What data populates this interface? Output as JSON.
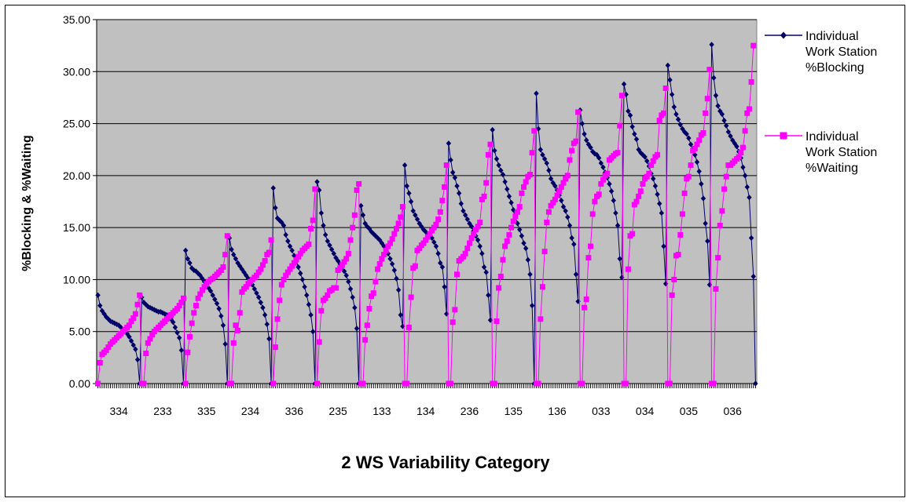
{
  "chart_data": {
    "type": "line",
    "title": "",
    "xlabel": "2 WS Variability Category",
    "ylabel": "%Blocking & %Waiting",
    "ylim": [
      0,
      35
    ],
    "yticks": [
      "0.00",
      "5.00",
      "10.00",
      "15.00",
      "20.00",
      "25.00",
      "30.00",
      "35.00"
    ],
    "grid": true,
    "legend_position": "right",
    "categories": [
      "334",
      "233",
      "335",
      "234",
      "336",
      "235",
      "133",
      "134",
      "236",
      "135",
      "136",
      "033",
      "034",
      "035",
      "036"
    ],
    "points_per_category": 21,
    "series": [
      {
        "name": "Individual Work Station %Blocking",
        "color": "#000066",
        "marker": "diamond",
        "groups": [
          [
            8.5,
            7.5,
            7.0,
            6.7,
            6.4,
            6.2,
            6.0,
            5.9,
            5.8,
            5.7,
            5.6,
            5.4,
            5.2,
            5.0,
            4.8,
            4.5,
            4.1,
            3.7,
            3.3,
            2.3,
            0
          ],
          [
            8.3,
            7.8,
            7.6,
            7.4,
            7.3,
            7.2,
            7.1,
            7.0,
            6.9,
            6.9,
            6.8,
            6.7,
            6.6,
            6.4,
            6.2,
            5.9,
            5.4,
            4.9,
            4.4,
            3.2,
            0
          ],
          [
            12.8,
            12.0,
            11.6,
            11.1,
            10.9,
            10.8,
            10.6,
            10.4,
            10.1,
            9.8,
            9.5,
            9.2,
            8.9,
            8.5,
            8.1,
            7.7,
            7.2,
            6.5,
            5.6,
            3.8,
            0
          ],
          [
            14.0,
            12.9,
            12.4,
            12.0,
            11.6,
            11.3,
            11.0,
            10.7,
            10.4,
            10.1,
            9.8,
            9.5,
            9.1,
            8.7,
            8.3,
            7.8,
            7.3,
            6.6,
            5.7,
            4.3,
            0
          ],
          [
            18.8,
            16.9,
            15.9,
            15.7,
            15.5,
            15.2,
            14.3,
            13.7,
            13.2,
            12.8,
            12.3,
            11.8,
            11.2,
            10.6,
            10.0,
            9.3,
            8.5,
            7.6,
            6.6,
            5.0,
            0
          ],
          [
            19.4,
            18.6,
            16.4,
            15.2,
            14.3,
            13.7,
            13.3,
            12.9,
            12.5,
            12.1,
            11.8,
            11.5,
            11.2,
            10.8,
            10.4,
            9.8,
            9.1,
            8.3,
            7.3,
            5.3,
            0
          ],
          [
            17.1,
            16.2,
            15.4,
            15.1,
            14.9,
            14.6,
            14.4,
            14.2,
            14.0,
            13.8,
            13.5,
            13.2,
            12.9,
            12.5,
            12.0,
            11.5,
            10.9,
            10.1,
            9.0,
            6.6,
            5.5
          ],
          [
            21.0,
            19.0,
            18.3,
            17.5,
            16.6,
            16.2,
            15.8,
            15.4,
            15.1,
            14.8,
            14.6,
            14.4,
            14.2,
            14.0,
            13.6,
            13.2,
            12.5,
            11.6,
            11.2,
            9.3,
            6.7
          ],
          [
            23.1,
            21.5,
            20.3,
            19.8,
            19.0,
            18.3,
            17.3,
            16.6,
            16.2,
            15.8,
            15.4,
            15.1,
            14.7,
            14.2,
            13.8,
            13.2,
            12.5,
            11.2,
            10.7,
            8.5,
            6.1
          ],
          [
            24.4,
            22.4,
            21.6,
            21.0,
            20.5,
            20.1,
            19.4,
            18.7,
            18.0,
            17.4,
            16.7,
            16.0,
            15.4,
            14.8,
            14.2,
            13.5,
            13.0,
            11.9,
            10.5,
            7.5,
            0
          ],
          [
            27.9,
            24.5,
            22.5,
            22.0,
            21.6,
            21.2,
            20.5,
            19.7,
            19.3,
            19.0,
            18.6,
            18.1,
            17.6,
            17.0,
            16.6,
            16.0,
            15.2,
            14.0,
            13.4,
            10.5,
            7.9
          ],
          [
            26.3,
            25.0,
            24.0,
            23.4,
            23.0,
            22.7,
            22.3,
            22.1,
            22.0,
            21.7,
            21.2,
            20.8,
            20.3,
            19.8,
            19.2,
            18.5,
            17.6,
            16.4,
            15.2,
            12.0,
            10.2
          ],
          [
            28.8,
            27.8,
            26.2,
            25.8,
            24.7,
            24.0,
            23.5,
            22.5,
            22.2,
            22.0,
            21.8,
            21.4,
            20.9,
            20.2,
            19.7,
            19.0,
            18.2,
            17.3,
            16.4,
            13.2,
            9.6
          ],
          [
            30.6,
            29.2,
            27.8,
            26.6,
            25.9,
            25.4,
            24.9,
            24.5,
            24.2,
            24.0,
            23.6,
            23.0,
            22.5,
            22.0,
            21.3,
            20.4,
            19.2,
            17.8,
            15.4,
            13.7,
            9.5
          ],
          [
            32.6,
            29.4,
            27.7,
            26.7,
            26.2,
            25.9,
            25.3,
            24.8,
            24.2,
            23.8,
            23.4,
            23.1,
            22.8,
            22.3,
            21.7,
            20.8,
            20.0,
            18.9,
            17.9,
            14.0,
            10.3
          ]
        ],
        "trailing_value": 0
      },
      {
        "name": "Individual Work Station %Waiting",
        "color": "#FF00FF",
        "marker": "square",
        "groups": [
          [
            0,
            2.0,
            2.8,
            3.0,
            3.2,
            3.5,
            3.8,
            4.0,
            4.2,
            4.4,
            4.6,
            4.8,
            5.0,
            5.2,
            5.4,
            5.6,
            6.0,
            6.3,
            6.7,
            7.6,
            8.5
          ],
          [
            0,
            0,
            2.9,
            3.9,
            4.3,
            4.7,
            5.0,
            5.2,
            5.4,
            5.6,
            5.8,
            6.0,
            6.2,
            6.4,
            6.6,
            6.8,
            7.0,
            7.2,
            7.5,
            7.8,
            8.2
          ],
          [
            0,
            3.0,
            4.5,
            5.8,
            6.8,
            7.5,
            8.2,
            8.6,
            9.0,
            9.3,
            9.6,
            9.8,
            10.0,
            10.1,
            10.3,
            10.5,
            10.7,
            10.9,
            11.2,
            12.4,
            14.2
          ],
          [
            0,
            0,
            3.9,
            5.6,
            5.1,
            6.8,
            8.8,
            9.1,
            9.3,
            9.6,
            9.8,
            10.0,
            10.2,
            10.4,
            10.7,
            11.0,
            11.4,
            11.8,
            12.4,
            12.6,
            13.8
          ],
          [
            0,
            3.5,
            6.2,
            8.0,
            9.5,
            10.0,
            10.4,
            10.7,
            11.0,
            11.3,
            11.6,
            11.9,
            12.2,
            12.5,
            12.8,
            13.0,
            13.2,
            13.4,
            14.9,
            15.7,
            18.7
          ],
          [
            0,
            4.0,
            7.0,
            8.0,
            8.2,
            8.5,
            8.9,
            9.0,
            9.2,
            9.2,
            10.9,
            11.1,
            11.4,
            11.7,
            12.0,
            12.5,
            13.8,
            15.0,
            16.2,
            18.6,
            19.2
          ],
          [
            0,
            0,
            4.2,
            5.6,
            7.2,
            8.4,
            8.7,
            9.8,
            11.0,
            11.5,
            12.0,
            12.4,
            12.8,
            13.2,
            13.5,
            13.9,
            14.4,
            14.9,
            15.4,
            16.0,
            17.0
          ],
          [
            0,
            0,
            5.4,
            8.3,
            11.1,
            11.3,
            12.8,
            13.0,
            13.3,
            13.5,
            13.8,
            14.1,
            14.4,
            14.7,
            15.0,
            15.3,
            15.8,
            16.5,
            17.6,
            18.9,
            21.0
          ],
          [
            0,
            0,
            5.9,
            7.1,
            10.5,
            11.8,
            12.0,
            12.2,
            12.5,
            13.0,
            13.5,
            14.0,
            14.4,
            14.8,
            15.1,
            15.5,
            17.7,
            18.0,
            19.3,
            22.0,
            23.0
          ],
          [
            0,
            0,
            6.0,
            9.2,
            10.3,
            11.9,
            13.2,
            13.7,
            14.3,
            15.0,
            15.6,
            16.1,
            16.5,
            17.0,
            18.3,
            18.9,
            19.4,
            19.9,
            20.1,
            22.2,
            24.3
          ],
          [
            0,
            0,
            6.2,
            9.3,
            12.7,
            15.5,
            16.5,
            17.1,
            17.4,
            17.7,
            18.1,
            18.5,
            18.9,
            19.3,
            19.7,
            20.0,
            21.5,
            22.4,
            23.1,
            23.3,
            26.1
          ],
          [
            0,
            0,
            7.3,
            8.1,
            12.1,
            13.2,
            16.3,
            17.5,
            18.0,
            18.2,
            19.2,
            19.6,
            20.0,
            20.2,
            21.5,
            21.7,
            21.9,
            22.1,
            22.2,
            24.8,
            27.7
          ],
          [
            0,
            0,
            11.0,
            14.2,
            14.4,
            17.2,
            17.5,
            18.0,
            18.5,
            19.2,
            19.7,
            19.9,
            20.2,
            21.0,
            21.4,
            21.8,
            22.0,
            25.3,
            25.8,
            26.0,
            28.4
          ],
          [
            0,
            0,
            8.5,
            10.0,
            12.3,
            12.4,
            14.3,
            16.3,
            18.3,
            19.7,
            19.9,
            21.0,
            22.4,
            22.6,
            23.0,
            23.4,
            23.9,
            24.1,
            26.0,
            27.4,
            30.2
          ],
          [
            0,
            0,
            9.1,
            12.1,
            15.2,
            16.6,
            18.7,
            19.9,
            21.0,
            21.0,
            21.2,
            21.4,
            21.6,
            21.8,
            22.2,
            22.7,
            24.3,
            26.0,
            26.4,
            29.0,
            32.5
          ]
        ],
        "trailing_value": null
      }
    ]
  }
}
